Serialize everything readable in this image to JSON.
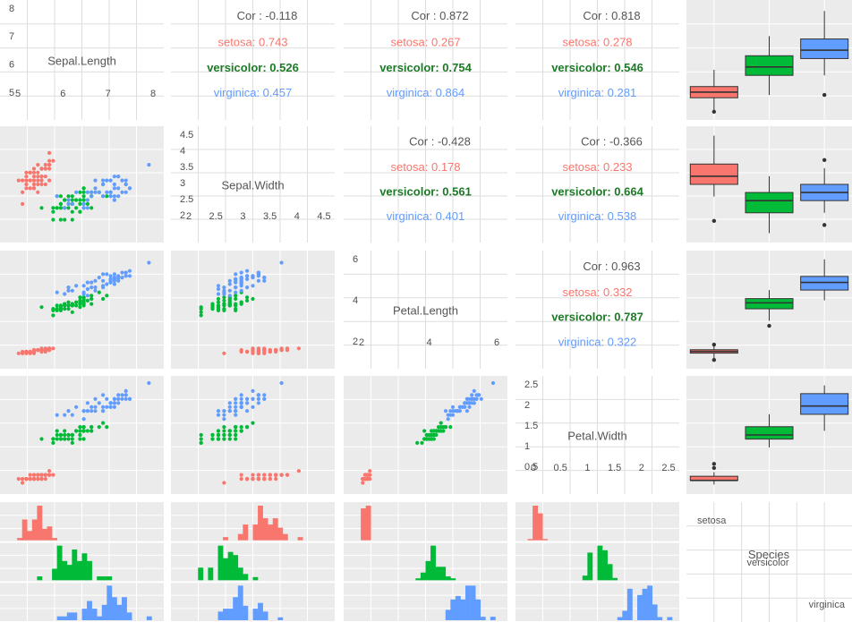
{
  "chart_data": {
    "type": "scatter-matrix",
    "title": "",
    "variables": [
      "Sepal.Length",
      "Sepal.Width",
      "Petal.Length",
      "Petal.Width",
      "Species"
    ],
    "species": [
      "setosa",
      "versicolor",
      "virginica"
    ],
    "colors": {
      "setosa": "#F8766D",
      "versicolor": "#00BA38",
      "virginica": "#619CFF"
    },
    "panel_background": "#EBEBEB",
    "grid": true,
    "diagonal_axes": {
      "Sepal.Length": {
        "ticks": [
          "5",
          "6",
          "7",
          "8"
        ],
        "y_ticks": [
          "5",
          "6",
          "7",
          "8"
        ],
        "range": [
          4.2,
          8.1
        ]
      },
      "Sepal.Width": {
        "ticks": [
          "2",
          "2.5",
          "3",
          "3.5",
          "4",
          "4.5"
        ],
        "y_ticks": [
          "2",
          "2.5",
          "3",
          "3.5",
          "4",
          "4.5"
        ],
        "range": [
          1.9,
          4.5
        ]
      },
      "Petal.Length": {
        "ticks": [
          "2",
          "4",
          "6"
        ],
        "y_ticks": [
          "2",
          "4",
          "6"
        ],
        "range": [
          0.8,
          7.1
        ]
      },
      "Petal.Width": {
        "ticks": [
          "0",
          "0.5",
          "1",
          "1.5",
          "2",
          "2.5"
        ],
        "y_ticks": [
          "0.5",
          "1",
          "1.5",
          "2",
          "2.5"
        ],
        "range": [
          0,
          2.6
        ]
      }
    },
    "correlations": [
      {
        "pair": [
          "Sepal.Length",
          "Sepal.Width"
        ],
        "cor": "Cor : -0.118",
        "setosa": "setosa: 0.743",
        "versicolor": "versicolor: 0.526",
        "virginica": "virginica: 0.457"
      },
      {
        "pair": [
          "Sepal.Length",
          "Petal.Length"
        ],
        "cor": "Cor : 0.872",
        "setosa": "setosa: 0.267",
        "versicolor": "versicolor: 0.754",
        "virginica": "virginica: 0.864"
      },
      {
        "pair": [
          "Sepal.Length",
          "Petal.Width"
        ],
        "cor": "Cor : 0.818",
        "setosa": "setosa: 0.278",
        "versicolor": "versicolor: 0.546",
        "virginica": "virginica: 0.281"
      },
      {
        "pair": [
          "Sepal.Width",
          "Petal.Length"
        ],
        "cor": "Cor : -0.428",
        "setosa": "setosa: 0.178",
        "versicolor": "versicolor: 0.561",
        "virginica": "virginica: 0.401"
      },
      {
        "pair": [
          "Sepal.Width",
          "Petal.Width"
        ],
        "cor": "Cor : -0.366",
        "setosa": "setosa: 0.233",
        "versicolor": "versicolor: 0.664",
        "virginica": "virginica: 0.538"
      },
      {
        "pair": [
          "Petal.Length",
          "Petal.Width"
        ],
        "cor": "Cor : 0.963",
        "setosa": "setosa: 0.332",
        "versicolor": "versicolor: 0.787",
        "virginica": "virginica: 0.322"
      }
    ],
    "boxplots": {
      "Sepal.Length": {
        "setosa": [
          4.3,
          4.8,
          5.0,
          5.2,
          5.8,
          [
            4.3
          ]
        ],
        "versicolor": [
          4.9,
          5.6,
          5.9,
          6.3,
          7.0,
          []
        ],
        "virginica": [
          5.6,
          6.2,
          6.5,
          6.9,
          7.9,
          [
            4.9
          ]
        ]
      },
      "Sepal.Width": {
        "setosa": [
          2.9,
          3.2,
          3.4,
          3.7,
          4.4,
          [
            2.3
          ]
        ],
        "versicolor": [
          2.0,
          2.5,
          2.8,
          3.0,
          3.4,
          []
        ],
        "virginica": [
          2.5,
          2.8,
          3.0,
          3.2,
          3.6,
          [
            2.2,
            3.8
          ]
        ]
      },
      "Petal.Length": {
        "setosa": [
          1.1,
          1.4,
          1.5,
          1.6,
          1.9,
          [
            1.0,
            1.9
          ]
        ],
        "versicolor": [
          3.3,
          4.0,
          4.35,
          4.6,
          5.1,
          [
            3.0
          ]
        ],
        "virginica": [
          4.5,
          5.1,
          5.55,
          5.9,
          6.9,
          []
        ]
      },
      "Petal.Width": {
        "setosa": [
          0.1,
          0.2,
          0.2,
          0.3,
          0.4,
          [
            0.5,
            0.6
          ]
        ],
        "versicolor": [
          1.0,
          1.2,
          1.3,
          1.5,
          1.8,
          []
        ],
        "virginica": [
          1.4,
          1.8,
          2.0,
          2.3,
          2.5,
          []
        ]
      }
    },
    "species_labels": [
      "Species",
      "setosa",
      "versicolor",
      "virginica"
    ]
  }
}
